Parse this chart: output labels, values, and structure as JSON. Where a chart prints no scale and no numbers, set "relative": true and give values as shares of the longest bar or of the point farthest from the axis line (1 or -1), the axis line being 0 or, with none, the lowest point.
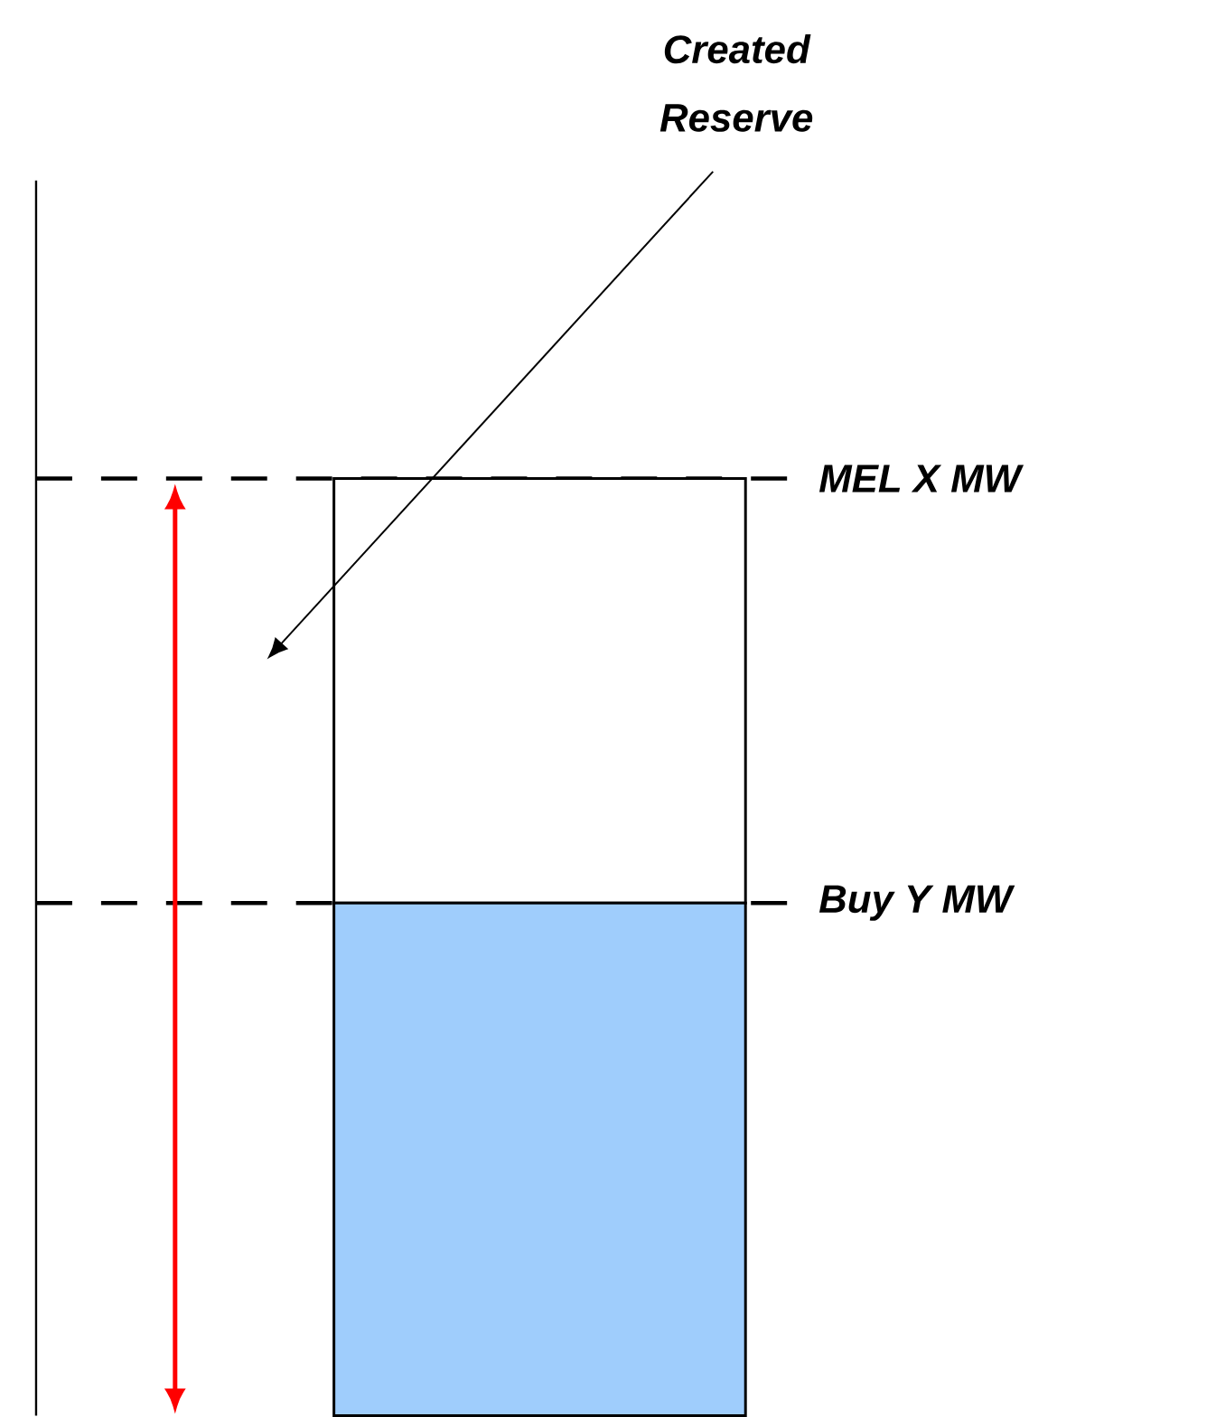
{
  "chart_data": {
    "type": "bar",
    "relative": true,
    "stacked": true,
    "categories": [
      null
    ],
    "series": [
      {
        "color": "#9fcdfc",
        "values": [
          0.547
        ]
      },
      {
        "color": "#ffffff",
        "values": [
          0.453
        ]
      }
    ],
    "ref_lines": [
      {
        "axis": "y",
        "value": 1,
        "label": "MEL X MW",
        "color": "#000000",
        "line_style": "dashed"
      },
      {
        "axis": "y",
        "value": 0.547,
        "label": "Buy Y MW",
        "color": "#000000",
        "line_style": "dashed"
      }
    ],
    "annotations": [
      "Created Reserve"
    ]
  }
}
